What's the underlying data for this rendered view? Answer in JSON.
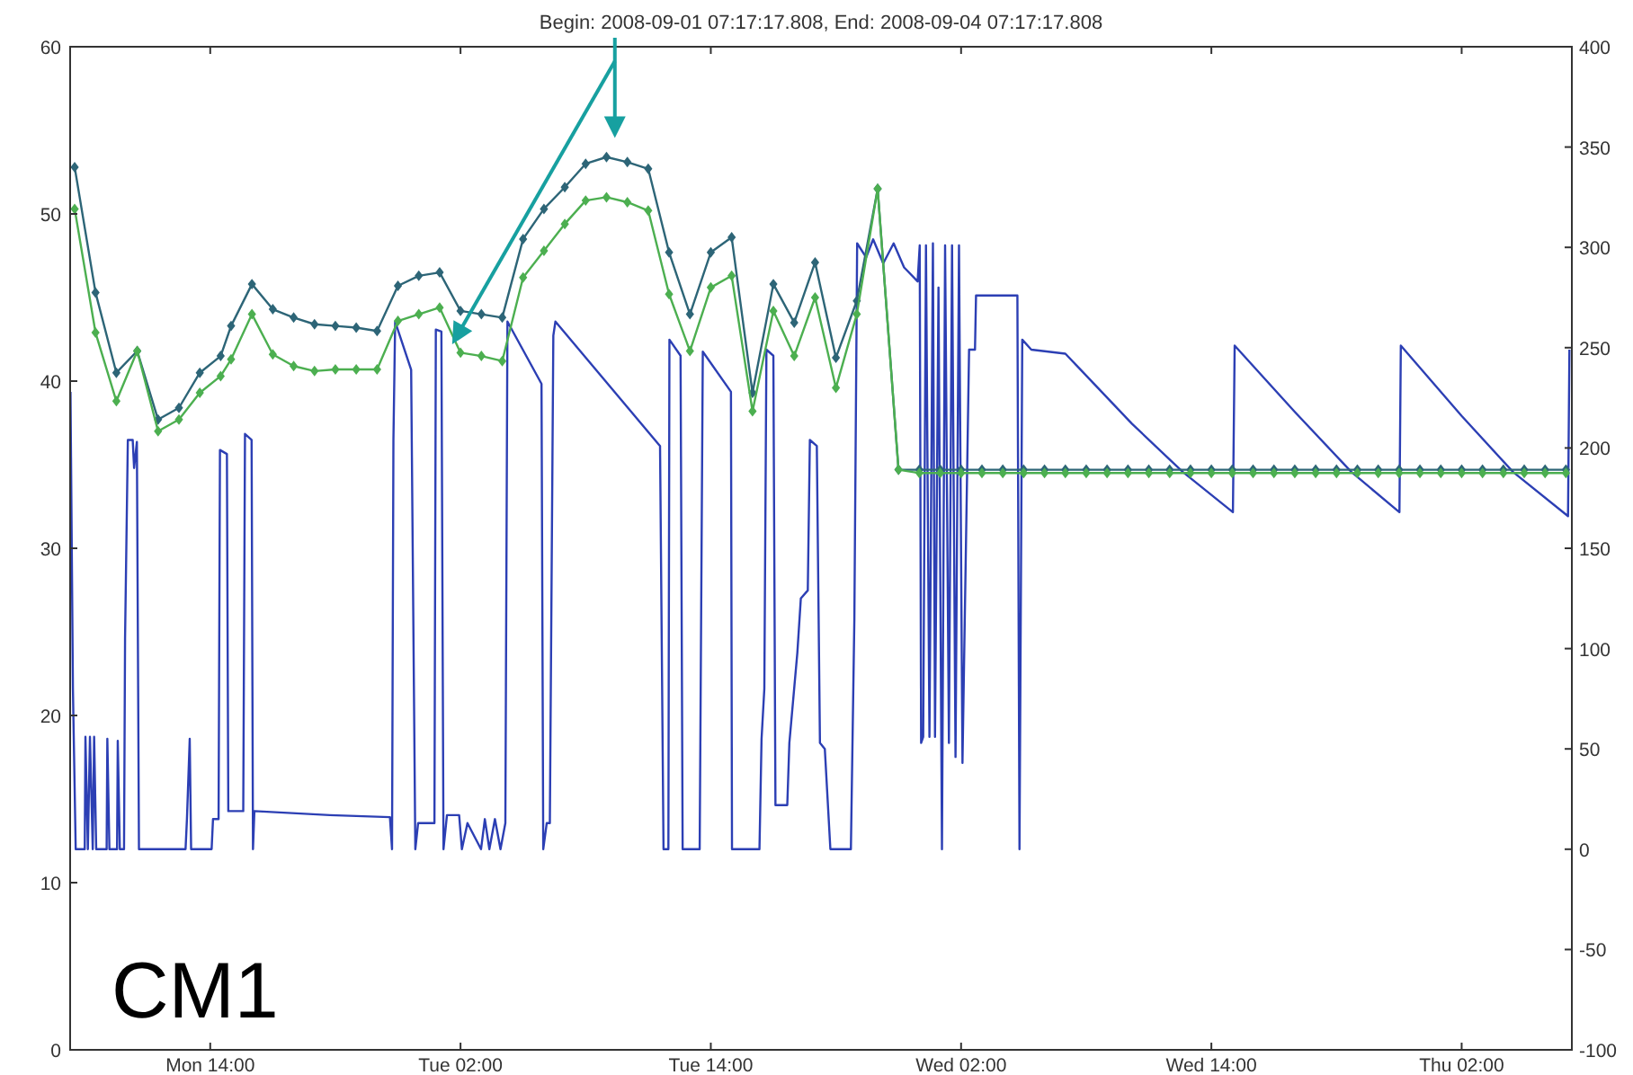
{
  "chart_data": {
    "type": "line",
    "title": "Begin: 2008-09-01 07:17:17.808, End: 2008-09-04 07:17:17.808",
    "annotations": [
      "CM1"
    ],
    "xlim": [
      "2008-09-01T07:17",
      "2008-09-04T07:17"
    ],
    "xticks": [
      {
        "value": "2008-09-01T14:00",
        "label": "Mon 14:00"
      },
      {
        "value": "2008-09-02T02:00",
        "label": "Tue 02:00"
      },
      {
        "value": "2008-09-02T14:00",
        "label": "Tue 14:00"
      },
      {
        "value": "2008-09-03T02:00",
        "label": "Wed 02:00"
      },
      {
        "value": "2008-09-03T14:00",
        "label": "Wed 14:00"
      },
      {
        "value": "2008-09-04T02:00",
        "label": "Thu 02:00"
      }
    ],
    "ylim": [
      0,
      60
    ],
    "yticks": [
      0,
      10,
      20,
      30,
      40,
      50,
      60
    ],
    "y2lim": [
      -100,
      400
    ],
    "y2ticks": [
      -100,
      -50,
      0,
      50,
      100,
      150,
      200,
      250,
      300,
      350,
      400
    ],
    "grid": false,
    "series": [
      {
        "color": "#2c3fb4",
        "axis": "y2",
        "marker": "none",
        "x": [
          "2008-09-01T07:18",
          "2008-09-01T07:25",
          "2008-09-01T07:33",
          "2008-09-01T07:59",
          "2008-09-01T08:01",
          "2008-09-01T08:08",
          "2008-09-01T08:14",
          "2008-09-01T08:22",
          "2008-09-01T08:26",
          "2008-09-01T08:32",
          "2008-09-01T09:02",
          "2008-09-01T09:04",
          "2008-09-01T09:10",
          "2008-09-01T09:32",
          "2008-09-01T09:34",
          "2008-09-01T09:40",
          "2008-09-01T09:52",
          "2008-09-01T09:55",
          "2008-09-01T10:03",
          "2008-09-01T10:17",
          "2008-09-01T10:21",
          "2008-09-01T10:29",
          "2008-09-01T10:35",
          "2008-09-01T12:49",
          "2008-09-01T12:53",
          "2008-09-01T13:01",
          "2008-09-01T13:05",
          "2008-09-01T14:04",
          "2008-09-01T14:08",
          "2008-09-01T14:24",
          "2008-09-01T14:28",
          "2008-09-01T14:48",
          "2008-09-01T14:52",
          "2008-09-01T15:35",
          "2008-09-01T15:40",
          "2008-09-01T15:59",
          "2008-09-01T16:03",
          "2008-09-01T16:07",
          "2008-09-01T19:44",
          "2008-09-01T22:37",
          "2008-09-01T22:43",
          "2008-09-01T22:47",
          "2008-09-01T22:52",
          "2008-09-01T23:38",
          "2008-09-01T23:50",
          "2008-09-01T23:58",
          "2008-09-02T00:45",
          "2008-09-02T00:49",
          "2008-09-02T01:05",
          "2008-09-02T01:11",
          "2008-09-02T01:21",
          "2008-09-02T01:56",
          "2008-09-02T02:04",
          "2008-09-02T02:20",
          "2008-09-02T02:59",
          "2008-09-02T03:10",
          "2008-09-02T03:23",
          "2008-09-02T03:39",
          "2008-09-02T03:55",
          "2008-09-02T04:09",
          "2008-09-02T04:15",
          "2008-09-02T05:53",
          "2008-09-02T05:58",
          "2008-09-02T06:08",
          "2008-09-02T06:17",
          "2008-09-02T06:27",
          "2008-09-02T06:33",
          "2008-09-02T11:34",
          "2008-09-02T11:44",
          "2008-09-02T11:58",
          "2008-09-02T12:01",
          "2008-09-02T12:33",
          "2008-09-02T12:39",
          "2008-09-02T13:28",
          "2008-09-02T13:37",
          "2008-09-02T14:58",
          "2008-09-02T15:01",
          "2008-09-02T16:20",
          "2008-09-02T16:26",
          "2008-09-02T16:34",
          "2008-09-02T16:40",
          "2008-09-02T17:00",
          "2008-09-02T17:06",
          "2008-09-02T17:40",
          "2008-09-02T17:46",
          "2008-09-02T18:09",
          "2008-09-02T18:19",
          "2008-09-02T18:39",
          "2008-09-02T18:45",
          "2008-09-02T19:05",
          "2008-09-02T19:14",
          "2008-09-02T19:28",
          "2008-09-02T19:44",
          "2008-09-02T20:43",
          "2008-09-02T20:53",
          "2008-09-02T21:01",
          "2008-09-02T21:27",
          "2008-09-02T21:47",
          "2008-09-02T22:16",
          "2008-09-02T22:46",
          "2008-09-02T23:16",
          "2008-09-02T23:55",
          "2008-09-03T00:01",
          "2008-09-03T00:05",
          "2008-09-03T00:11",
          "2008-09-03T00:19",
          "2008-09-03T00:29",
          "2008-09-03T00:39",
          "2008-09-03T00:45",
          "2008-09-03T00:55",
          "2008-09-03T01:05",
          "2008-09-03T01:14",
          "2008-09-03T01:25",
          "2008-09-03T01:34",
          "2008-09-03T01:44",
          "2008-09-03T01:54",
          "2008-09-03T02:04",
          "2008-09-03T02:23",
          "2008-09-03T02:40",
          "2008-09-03T02:43",
          "2008-09-03T04:42",
          "2008-09-03T04:48",
          "2008-09-03T04:56",
          "2008-09-03T05:22",
          "2008-09-03T07:00",
          "2008-09-03T07:44",
          "2008-09-03T10:12",
          "2008-09-03T12:38",
          "2008-09-03T15:02",
          "2008-09-03T15:07",
          "2008-09-03T18:00",
          "2008-09-03T20:43",
          "2008-09-03T23:01",
          "2008-09-03T23:05",
          "2008-09-04T02:00",
          "2008-09-04T04:28",
          "2008-09-04T07:06",
          "2008-09-04T07:10"
        ],
        "values": [
          228,
          80,
          0,
          0,
          56,
          0,
          56,
          0,
          56,
          0,
          0,
          55,
          0,
          0,
          54,
          0,
          0,
          105,
          204,
          204,
          190,
          203,
          0,
          0,
          15,
          55,
          0,
          0,
          15,
          15,
          199,
          197,
          19,
          19,
          207,
          204,
          0,
          19,
          17,
          16,
          0,
          204,
          263,
          239,
          0,
          13,
          13,
          259,
          258,
          0,
          17,
          17,
          0,
          13,
          0,
          15,
          0,
          15,
          0,
          13,
          263,
          232,
          0,
          13,
          13,
          256,
          263,
          201,
          0,
          0,
          254,
          246,
          0,
          0,
          248,
          228,
          0,
          0,
          55,
          80,
          249,
          246,
          22,
          22,
          53,
          98,
          125,
          129,
          204,
          201,
          53,
          50,
          0,
          0,
          115,
          302,
          295,
          304,
          292,
          302,
          290,
          283,
          301,
          53,
          56,
          301,
          56,
          302,
          56,
          280,
          0,
          301,
          53,
          301,
          46,
          301,
          43,
          249,
          249,
          276,
          276,
          0,
          254,
          249,
          247,
          239,
          212,
          188,
          168,
          251,
          218,
          188,
          168,
          251,
          216,
          188,
          166,
          249
        ]
      },
      {
        "color": "#2d6577",
        "marker": "diamond",
        "x": [
          "2008-09-01T07:30",
          "2008-09-01T08:30",
          "2008-09-01T09:30",
          "2008-09-01T10:30",
          "2008-09-01T11:30",
          "2008-09-01T12:30",
          "2008-09-01T13:30",
          "2008-09-01T14:30",
          "2008-09-01T15:00",
          "2008-09-01T16:00",
          "2008-09-01T17:00",
          "2008-09-01T18:00",
          "2008-09-01T19:00",
          "2008-09-01T20:00",
          "2008-09-01T21:00",
          "2008-09-01T22:00",
          "2008-09-01T23:00",
          "2008-09-02T00:00",
          "2008-09-02T01:00",
          "2008-09-02T02:00",
          "2008-09-02T03:00",
          "2008-09-02T04:00",
          "2008-09-02T05:00",
          "2008-09-02T06:00",
          "2008-09-02T07:00",
          "2008-09-02T08:00",
          "2008-09-02T09:00",
          "2008-09-02T10:00",
          "2008-09-02T11:00",
          "2008-09-02T12:00",
          "2008-09-02T13:00",
          "2008-09-02T14:00",
          "2008-09-02T15:00",
          "2008-09-02T16:00",
          "2008-09-02T17:00",
          "2008-09-02T18:00",
          "2008-09-02T19:00",
          "2008-09-02T20:00",
          "2008-09-02T21:00",
          "2008-09-02T22:00",
          "2008-09-02T23:00",
          "2008-09-03T00:00",
          "2008-09-03T01:00",
          "2008-09-03T02:00",
          "2008-09-03T03:00",
          "2008-09-03T04:00",
          "2008-09-03T05:00",
          "2008-09-03T06:00",
          "2008-09-03T07:00",
          "2008-09-03T08:00",
          "2008-09-03T09:00",
          "2008-09-03T10:00",
          "2008-09-03T11:00",
          "2008-09-03T12:00",
          "2008-09-03T13:00",
          "2008-09-03T14:00",
          "2008-09-03T15:00",
          "2008-09-03T16:00",
          "2008-09-03T17:00",
          "2008-09-03T18:00",
          "2008-09-03T19:00",
          "2008-09-03T20:00",
          "2008-09-03T21:00",
          "2008-09-03T22:00",
          "2008-09-03T23:00",
          "2008-09-04T00:00",
          "2008-09-04T01:00",
          "2008-09-04T02:00",
          "2008-09-04T03:00",
          "2008-09-04T04:00",
          "2008-09-04T05:00",
          "2008-09-04T06:00",
          "2008-09-04T07:00"
        ],
        "values": [
          52.8,
          45.3,
          40.5,
          41.8,
          37.7,
          38.4,
          40.5,
          41.5,
          43.3,
          45.8,
          44.3,
          43.8,
          43.4,
          43.3,
          43.2,
          43.0,
          45.7,
          46.3,
          46.5,
          44.2,
          44.0,
          43.8,
          48.5,
          50.3,
          51.6,
          53.0,
          53.4,
          53.1,
          52.7,
          47.7,
          44.0,
          47.7,
          48.6,
          39.3,
          45.8,
          43.5,
          47.1,
          41.4,
          44.8,
          51.5,
          34.7,
          34.7,
          34.7,
          34.7,
          34.7,
          34.7,
          34.7,
          34.7,
          34.7,
          34.7,
          34.7,
          34.7,
          34.7,
          34.7,
          34.7,
          34.7,
          34.7,
          34.7,
          34.7,
          34.7,
          34.7,
          34.7,
          34.7,
          34.7,
          34.7,
          34.7,
          34.7,
          34.7,
          34.7,
          34.7,
          34.7,
          34.7,
          34.7
        ]
      },
      {
        "color": "#4caf50",
        "marker": "diamond",
        "x": [
          "2008-09-01T07:30",
          "2008-09-01T08:30",
          "2008-09-01T09:30",
          "2008-09-01T10:30",
          "2008-09-01T11:30",
          "2008-09-01T12:30",
          "2008-09-01T13:30",
          "2008-09-01T14:30",
          "2008-09-01T15:00",
          "2008-09-01T16:00",
          "2008-09-01T17:00",
          "2008-09-01T18:00",
          "2008-09-01T19:00",
          "2008-09-01T20:00",
          "2008-09-01T21:00",
          "2008-09-01T22:00",
          "2008-09-01T23:00",
          "2008-09-02T00:00",
          "2008-09-02T01:00",
          "2008-09-02T02:00",
          "2008-09-02T03:00",
          "2008-09-02T04:00",
          "2008-09-02T05:00",
          "2008-09-02T06:00",
          "2008-09-02T07:00",
          "2008-09-02T08:00",
          "2008-09-02T09:00",
          "2008-09-02T10:00",
          "2008-09-02T11:00",
          "2008-09-02T12:00",
          "2008-09-02T13:00",
          "2008-09-02T14:00",
          "2008-09-02T15:00",
          "2008-09-02T16:00",
          "2008-09-02T17:00",
          "2008-09-02T18:00",
          "2008-09-02T19:00",
          "2008-09-02T20:00",
          "2008-09-02T21:00",
          "2008-09-02T22:00",
          "2008-09-02T23:00",
          "2008-09-03T00:00",
          "2008-09-03T01:00",
          "2008-09-03T02:00",
          "2008-09-03T03:00",
          "2008-09-03T04:00",
          "2008-09-03T05:00",
          "2008-09-03T06:00",
          "2008-09-03T07:00",
          "2008-09-03T08:00",
          "2008-09-03T09:00",
          "2008-09-03T10:00",
          "2008-09-03T11:00",
          "2008-09-03T12:00",
          "2008-09-03T13:00",
          "2008-09-03T14:00",
          "2008-09-03T15:00",
          "2008-09-03T16:00",
          "2008-09-03T17:00",
          "2008-09-03T18:00",
          "2008-09-03T19:00",
          "2008-09-03T20:00",
          "2008-09-03T21:00",
          "2008-09-03T22:00",
          "2008-09-03T23:00",
          "2008-09-04T00:00",
          "2008-09-04T01:00",
          "2008-09-04T02:00",
          "2008-09-04T03:00",
          "2008-09-04T04:00",
          "2008-09-04T05:00",
          "2008-09-04T06:00",
          "2008-09-04T07:00"
        ],
        "values": [
          50.3,
          42.9,
          38.8,
          41.8,
          37.0,
          37.7,
          39.3,
          40.3,
          41.3,
          44.0,
          41.6,
          40.9,
          40.6,
          40.7,
          40.7,
          40.7,
          43.6,
          44.0,
          44.4,
          41.7,
          41.5,
          41.2,
          46.2,
          47.8,
          49.4,
          50.8,
          51.0,
          50.7,
          50.2,
          45.2,
          41.8,
          45.6,
          46.3,
          38.2,
          44.2,
          41.5,
          45.0,
          39.6,
          44.0,
          51.5,
          34.7,
          34.5,
          34.5,
          34.5,
          34.5,
          34.5,
          34.5,
          34.5,
          34.5,
          34.5,
          34.5,
          34.5,
          34.5,
          34.5,
          34.5,
          34.5,
          34.5,
          34.5,
          34.5,
          34.5,
          34.5,
          34.5,
          34.5,
          34.5,
          34.5,
          34.5,
          34.5,
          34.5,
          34.5,
          34.5,
          34.5,
          34.5,
          34.5
        ]
      }
    ]
  }
}
